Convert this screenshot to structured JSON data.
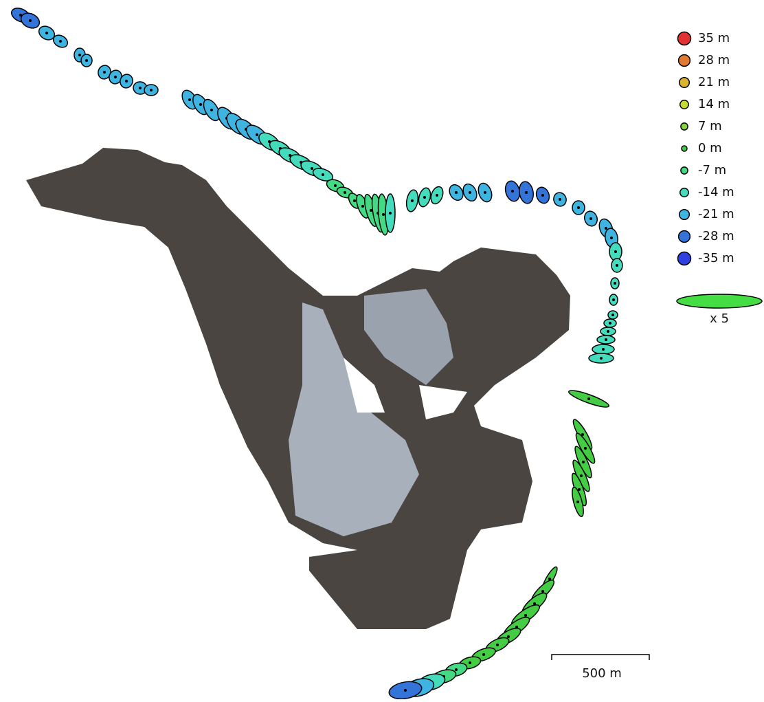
{
  "legend": {
    "entries": [
      {
        "label": "35 m",
        "color": "#e03232"
      },
      {
        "label": "28 m",
        "color": "#e07a32"
      },
      {
        "label": "21 m",
        "color": "#d8b432"
      },
      {
        "label": "14 m",
        "color": "#c4dc32"
      },
      {
        "label": "7 m",
        "color": "#84d23c"
      },
      {
        "label": "0 m",
        "color": "#44cc44"
      },
      {
        "label": "-7 m",
        "color": "#44da84"
      },
      {
        "label": "-14 m",
        "color": "#44dcbc"
      },
      {
        "label": "-21 m",
        "color": "#40b4e0"
      },
      {
        "label": "-28 m",
        "color": "#3474d8"
      },
      {
        "label": "-35 m",
        "color": "#3040e0"
      }
    ],
    "scale_label": "x 5"
  },
  "scale_bar": {
    "label": "500 m"
  }
}
